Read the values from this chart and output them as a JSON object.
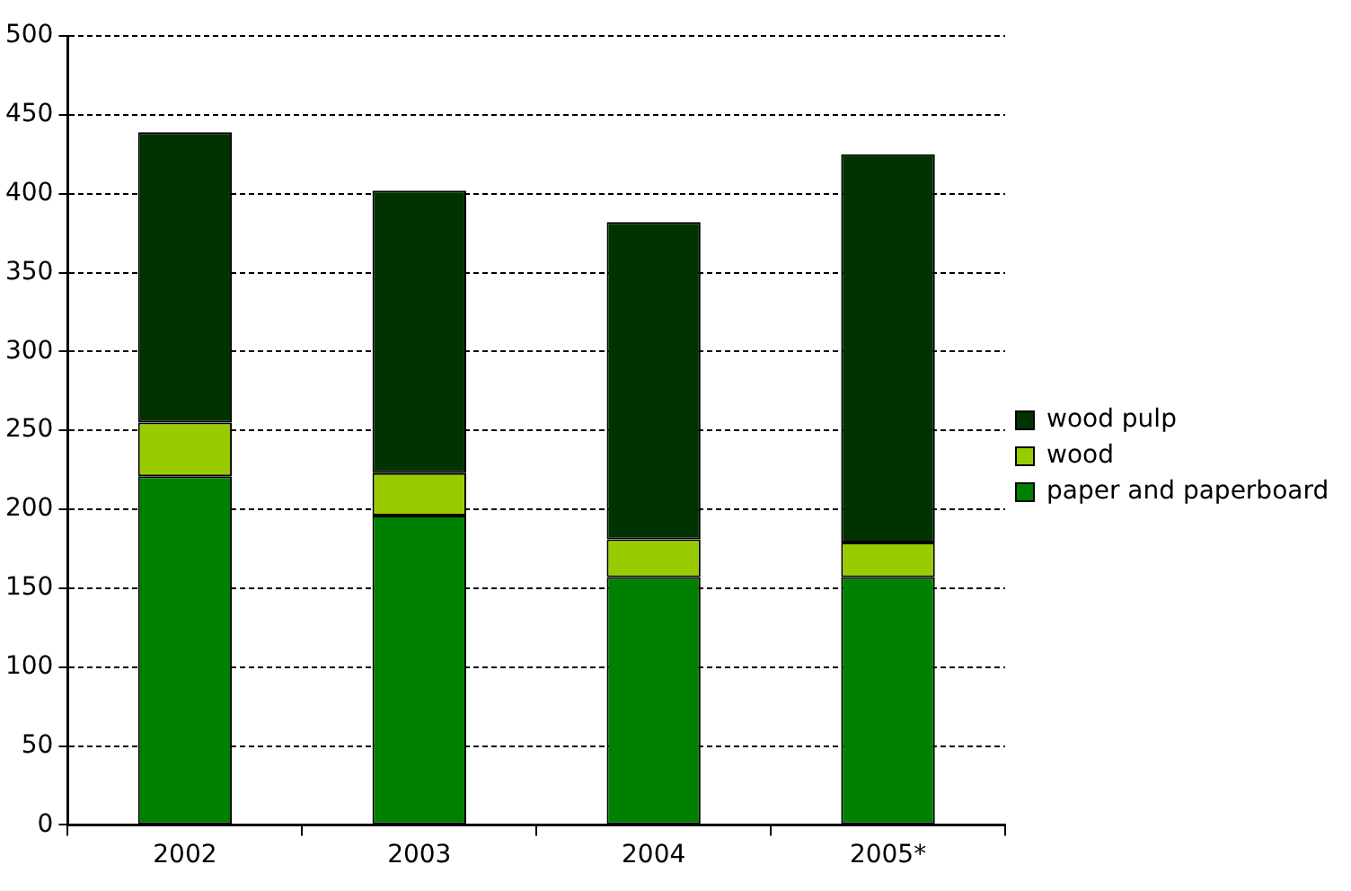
{
  "chart_data": {
    "type": "bar",
    "stacked": true,
    "categories": [
      "2002",
      "2003",
      "2004",
      "2005*"
    ],
    "series": [
      {
        "name": "paper and paperboard",
        "color": "#008000",
        "values": [
          221,
          196,
          157,
          157
        ]
      },
      {
        "name": "wood",
        "color": "#99cc00",
        "values": [
          34,
          27,
          24,
          22
        ]
      },
      {
        "name": "wood pulp",
        "color": "#003300",
        "values": [
          184,
          179,
          201,
          246
        ]
      }
    ],
    "ylim": [
      0,
      500
    ],
    "yticks": [
      0,
      50,
      100,
      150,
      200,
      250,
      300,
      350,
      400,
      450,
      500
    ],
    "grid": "y",
    "legend": "right"
  }
}
